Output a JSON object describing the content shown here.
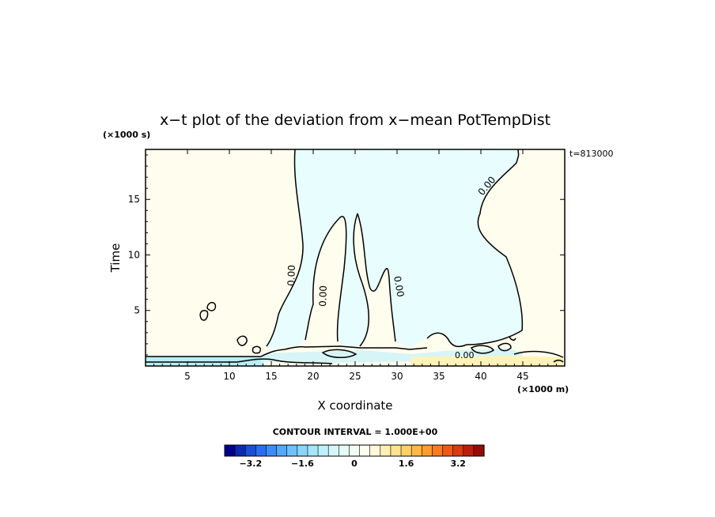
{
  "chart_data": {
    "type": "contour",
    "title": "x−t plot of the deviation from x−mean PotTempDist",
    "xlabel": "X coordinate",
    "ylabel": "Time",
    "x_unit": "(×1000 m)",
    "y_unit": "(×1000 s)",
    "time_stamp": "t=813000",
    "xlim": [
      0,
      50
    ],
    "ylim": [
      0,
      19.5
    ],
    "x_ticks": [
      5,
      10,
      15,
      20,
      25,
      30,
      35,
      40,
      45
    ],
    "y_ticks": [
      5,
      10,
      15
    ],
    "contour_level_label": "0.00",
    "contour_interval_label": "CONTOUR INTERVAL = 1.000E+00",
    "colorbar": {
      "min": -4.0,
      "max": 4.0,
      "tick_labels": [
        "−3.2",
        "−1.6",
        "0",
        "1.6",
        "3.2"
      ],
      "tick_values": [
        -3.2,
        -1.6,
        0,
        1.6,
        3.2
      ],
      "colors": [
        "#00008b",
        "#0a2ab0",
        "#1a4fd6",
        "#2a6ff0",
        "#3d8df7",
        "#55a8fb",
        "#6dc0fd",
        "#88d6fd",
        "#a3e6fc",
        "#bdf1fb",
        "#d4f8fa",
        "#e6fbf8",
        "#f3fdf6",
        "#fdfdf0",
        "#fff8d8",
        "#fff0b5",
        "#ffe38e",
        "#ffd066",
        "#ffb845",
        "#ff9c2c",
        "#f97c1c",
        "#ee5a14",
        "#d93a10",
        "#bd1e0c",
        "#990a06"
      ]
    },
    "regions": {
      "positive_color": "#fffdee",
      "negative_color": "#e8fdfd"
    }
  }
}
